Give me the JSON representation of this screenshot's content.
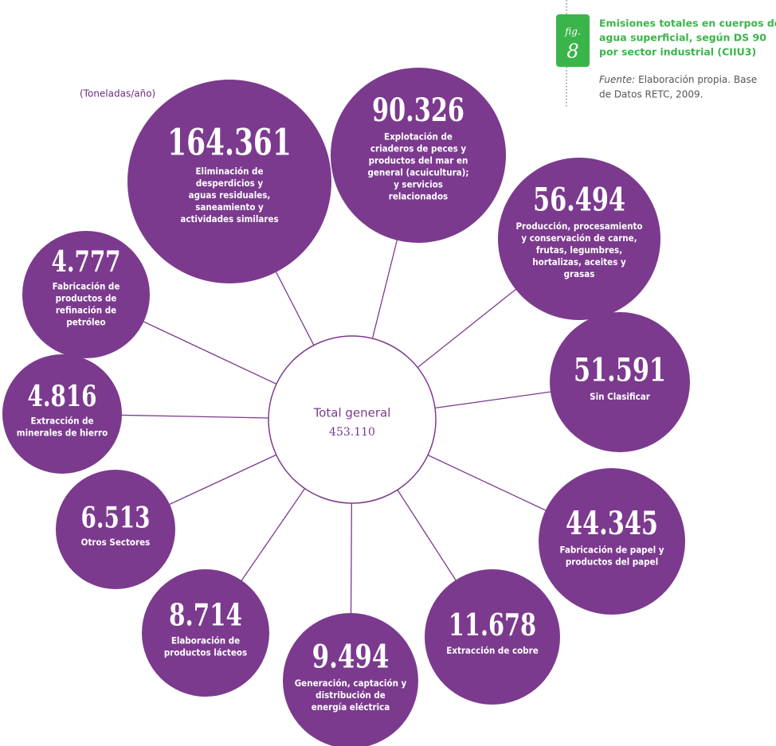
{
  "header": {
    "unit": "(Toneladas/año)",
    "figure": {
      "prefix": "fig.",
      "number": "8"
    },
    "title": [
      "Emisiones totales en cuerpos de",
      "agua superficial, según DS 90",
      "por sector industrial (CIIU3)"
    ],
    "source": {
      "lead": "Fuente:",
      "lines": [
        "Elaboración propia. Base",
        "de Datos RETC, 2009."
      ]
    }
  },
  "center": {
    "label": "Total general",
    "value": "453.110"
  },
  "nodes": [
    {
      "value": "164.361",
      "label": [
        "Eliminación de",
        "desperdicios y",
        "aguas residuales,",
        "saneamiento y",
        "actividades similares"
      ]
    },
    {
      "value": "90.326",
      "label": [
        "Explotación de",
        "criaderos de peces y",
        "productos del mar en",
        "general (acuicultura);",
        "y servicios",
        "relacionados"
      ]
    },
    {
      "value": "56.494",
      "label": [
        "Producción, procesamiento",
        "y conservación de carne,",
        "frutas, legumbres,",
        "hortalizas, aceites y",
        "grasas"
      ]
    },
    {
      "value": "51.591",
      "label": [
        "Sin Clasificar"
      ]
    },
    {
      "value": "44.345",
      "label": [
        "Fabricación de papel y",
        "productos del papel"
      ]
    },
    {
      "value": "11.678",
      "label": [
        "Extracción de cobre"
      ]
    },
    {
      "value": "9.494",
      "label": [
        "Generación, captación y",
        "distribución de",
        "energía eléctrica"
      ]
    },
    {
      "value": "8.714",
      "label": [
        "Elaboración de",
        "productos lácteos"
      ]
    },
    {
      "value": "6.513",
      "label": [
        "Otros Sectores"
      ]
    },
    {
      "value": "4.816",
      "label": [
        "Extracción de",
        "minerales de hierro"
      ]
    },
    {
      "value": "4.777",
      "label": [
        "Fabricación de",
        "productos de",
        "refinación de",
        "petróleo"
      ]
    }
  ]
}
